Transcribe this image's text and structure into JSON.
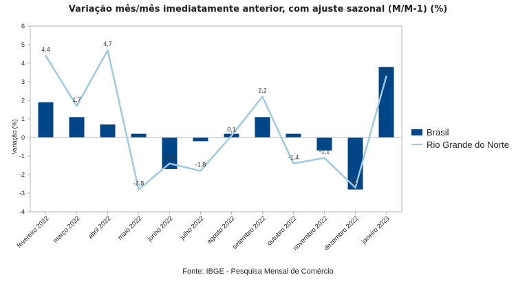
{
  "title": "Variação mês/mês imediatamente anterior, com ajuste sazonal (M/M-1) (%)",
  "source": "Fonte: IBGE - Pesquisa Mensal de Comércio",
  "chart_data": {
    "type": "bar",
    "title": "Variação mês/mês imediatamente anterior, com ajuste sazonal (M/M-1) (%)",
    "xlabel": "",
    "ylabel": "Variação (%)",
    "ylim": [
      -4,
      6
    ],
    "yticks": [
      "-4",
      "-3",
      "-2",
      "-1",
      "0",
      "1",
      "2",
      "3",
      "4",
      "5",
      "6"
    ],
    "grid": false,
    "legend_position": "right",
    "categories": [
      "fevereiro 2022",
      "março 2022",
      "abril 2022",
      "maio 2022",
      "junho 2022",
      "julho 2022",
      "agosto 2022",
      "setembro 2022",
      "outubro 2022",
      "novembro 2022",
      "dezembro 2022",
      "janeiro 2023"
    ],
    "series": [
      {
        "name": "Brasil",
        "type": "bar",
        "color": "#004586",
        "values": [
          1.9,
          1.1,
          0.7,
          0.2,
          -1.7,
          -0.2,
          0.2,
          1.1,
          0.2,
          -0.7,
          -2.8,
          3.8
        ]
      },
      {
        "name": "Rio Grande do Norte",
        "type": "line",
        "color": "#9ecae1",
        "values": [
          4.4,
          1.7,
          4.7,
          -2.8,
          -1.4,
          -1.8,
          0.1,
          2.2,
          -1.4,
          -1.1,
          -2.7,
          3.3
        ],
        "labels": [
          "4,4",
          "1,7",
          "4,7",
          "-2,8",
          "-1,4",
          "-1,8",
          "0,1",
          "2,2",
          "-1,4",
          "-1,1",
          "-2,7",
          "3,3"
        ]
      }
    ]
  }
}
